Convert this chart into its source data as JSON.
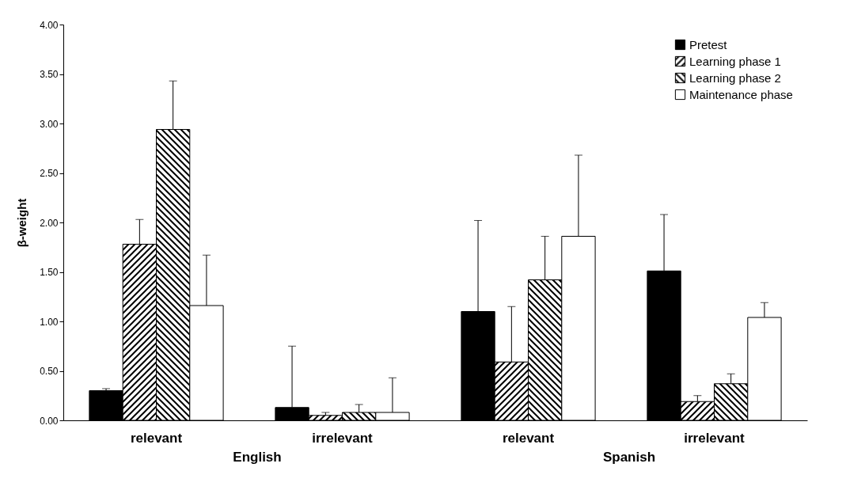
{
  "chart_data": {
    "type": "bar",
    "ylabel": "β-weight",
    "categories": [
      "relevant",
      "irrelevant",
      "relevant",
      "irrelevant"
    ],
    "annotations": [
      "English",
      "Spanish"
    ],
    "series": [
      {
        "name": "Pretest",
        "color": "#000000",
        "values": [
          0.3,
          0.13,
          1.1,
          1.51
        ],
        "errors": [
          [
            0.3,
            0.32
          ],
          [
            0.13,
            0.75
          ],
          [
            1.1,
            2.02
          ],
          [
            1.51,
            2.08
          ]
        ]
      },
      {
        "name": "Learning phase 1",
        "color": "#000000",
        "values": [
          1.78,
          0.05,
          0.59,
          0.19
        ],
        "errors": [
          [
            1.78,
            2.03
          ],
          [
            0.05,
            0.08
          ],
          [
            0.59,
            1.15
          ],
          [
            0.19,
            0.25
          ]
        ]
      },
      {
        "name": "Learning phase 2",
        "color": "#000000",
        "values": [
          2.94,
          0.08,
          1.42,
          0.37
        ],
        "errors": [
          [
            2.94,
            3.43
          ],
          [
            0.08,
            0.16
          ],
          [
            1.42,
            1.86
          ],
          [
            0.37,
            0.47
          ]
        ]
      },
      {
        "name": "Maintenance phase",
        "color": "#ffffff",
        "values": [
          1.16,
          0.08,
          1.86,
          1.04
        ],
        "errors": [
          [
            1.16,
            1.67
          ],
          [
            0.08,
            0.43
          ],
          [
            1.86,
            2.68
          ],
          [
            1.04,
            1.19
          ]
        ]
      }
    ],
    "ylim": [
      0,
      4
    ],
    "yticks": [
      {
        "value": 0,
        "label": "0.00"
      },
      {
        "value": 0.5,
        "label": "0.50"
      },
      {
        "value": 1,
        "label": "1.00"
      },
      {
        "value": 1.5,
        "label": "1.50"
      },
      {
        "value": 2,
        "label": "2.00"
      },
      {
        "value": 2.5,
        "label": "2.50"
      },
      {
        "value": 3,
        "label": "3.00"
      },
      {
        "value": 3.5,
        "label": "3.50"
      },
      {
        "value": 4,
        "label": "4.00"
      }
    ],
    "grid": false,
    "legend": "top right"
  }
}
